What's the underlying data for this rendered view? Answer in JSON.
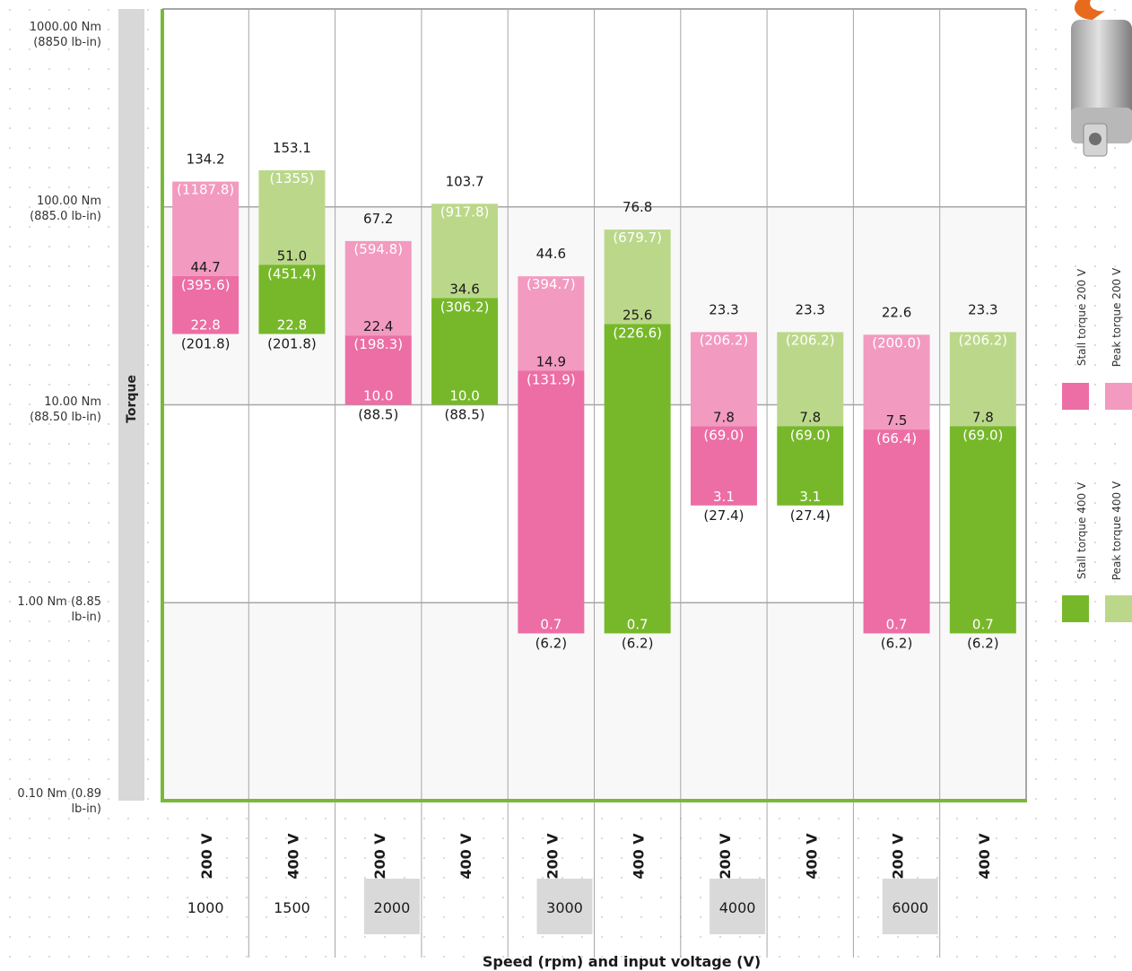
{
  "y_axis": {
    "title": "Torque",
    "ticks": [
      {
        "value": 1000,
        "line1": "1000.00 Nm",
        "line2": "(8850 lb-in)"
      },
      {
        "value": 100,
        "line1": "100.00 Nm",
        "line2": "(885.0 lb-in)"
      },
      {
        "value": 10,
        "line1": "10.00 Nm",
        "line2": "(88.50 lb-in)"
      },
      {
        "value": 1,
        "line1": "1.00 Nm (8.85",
        "line2": "lb-in)"
      },
      {
        "value": 0.1,
        "line1": "0.10 Nm (0.89",
        "line2": "lb-in)"
      }
    ]
  },
  "x_axis_title": "Speed (rpm) and input voltage (V)",
  "legend": {
    "stall_200": "Stall torque 200 V",
    "peak_200": "Peak torque 200 V",
    "stall_400": "Stall torque 400 V",
    "peak_400": "Peak torque 400 V"
  },
  "colors": {
    "stall_200": "#ec6ea5",
    "peak_200": "#f29ac0",
    "stall_400": "#77b82a",
    "peak_400": "#bbd88a",
    "axis_green": "#7ab83a",
    "grid": "#a6a6a6"
  },
  "chart_data": {
    "type": "bar",
    "scale": "log",
    "ylim": [
      0.1,
      1000
    ],
    "speeds": [
      "1000",
      "1500",
      "2000",
      "3000",
      "4000",
      "6000"
    ],
    "speed_columns": [
      [
        0
      ],
      [
        1
      ],
      [
        2,
        3
      ],
      [
        4,
        5
      ],
      [
        6,
        7
      ],
      [
        8,
        9
      ]
    ],
    "categories": [
      "200 V",
      "400 V",
      "200 V",
      "400 V",
      "200 V",
      "400 V",
      "200 V",
      "400 V",
      "200 V",
      "400 V"
    ],
    "bars": [
      {
        "speed": "1000",
        "voltage": "200 V",
        "series": "200",
        "stall_min": 22.8,
        "stall_min_lbin": "(201.8)",
        "stall_max": 44.7,
        "stall_max_lbin": "(395.6)",
        "peak": 134.2,
        "peak_lbin": "(1187.8)"
      },
      {
        "speed": "1500",
        "voltage": "400 V",
        "series": "400",
        "stall_min": 22.8,
        "stall_min_lbin": "(201.8)",
        "stall_max": 51.0,
        "stall_max_lbin": "(451.4)",
        "peak": 153.1,
        "peak_lbin": "(1355)"
      },
      {
        "speed": "2000",
        "voltage": "200 V",
        "series": "200",
        "stall_min": 10.0,
        "stall_min_lbin": "(88.5)",
        "stall_max": 22.4,
        "stall_max_lbin": "(198.3)",
        "peak": 67.2,
        "peak_lbin": "(594.8)"
      },
      {
        "speed": "2000",
        "voltage": "400 V",
        "series": "400",
        "stall_min": 10.0,
        "stall_min_lbin": "(88.5)",
        "stall_max": 34.6,
        "stall_max_lbin": "(306.2)",
        "peak": 103.7,
        "peak_lbin": "(917.8)"
      },
      {
        "speed": "3000",
        "voltage": "200 V",
        "series": "200",
        "stall_min": 0.7,
        "stall_min_lbin": "(6.2)",
        "stall_max": 14.9,
        "stall_max_lbin": "(131.9)",
        "peak": 44.6,
        "peak_lbin": "(394.7)"
      },
      {
        "speed": "3000",
        "voltage": "400 V",
        "series": "400",
        "stall_min": 0.7,
        "stall_min_lbin": "(6.2)",
        "stall_max": 25.6,
        "stall_max_lbin": "(226.6)",
        "peak": 76.8,
        "peak_lbin": "(679.7)"
      },
      {
        "speed": "4000",
        "voltage": "200 V",
        "series": "200",
        "stall_min": 3.1,
        "stall_min_lbin": "(27.4)",
        "stall_max": 7.8,
        "stall_max_lbin": "(69.0)",
        "peak": 23.3,
        "peak_lbin": "(206.2)"
      },
      {
        "speed": "4000",
        "voltage": "400 V",
        "series": "400",
        "stall_min": 3.1,
        "stall_min_lbin": "(27.4)",
        "stall_max": 7.8,
        "stall_max_lbin": "(69.0)",
        "peak": 23.3,
        "peak_lbin": "(206.2)"
      },
      {
        "speed": "6000",
        "voltage": "200 V",
        "series": "200",
        "stall_min": 0.7,
        "stall_min_lbin": "(6.2)",
        "stall_max": 7.5,
        "stall_max_lbin": "(66.4)",
        "peak": 22.6,
        "peak_lbin": "(200.0)"
      },
      {
        "speed": "6000",
        "voltage": "400 V",
        "series": "400",
        "stall_min": 0.7,
        "stall_min_lbin": "(6.2)",
        "stall_max": 7.8,
        "stall_max_lbin": "(69.0)",
        "peak": 23.3,
        "peak_lbin": "(206.2)"
      }
    ]
  }
}
